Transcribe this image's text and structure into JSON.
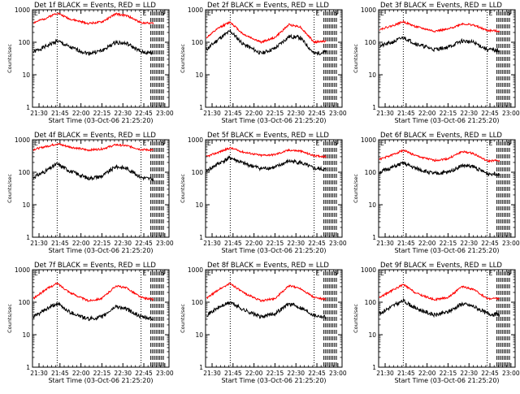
{
  "figure": {
    "ylabel": "Counts/sec",
    "xlabel": "Start Time (03-Oct-06 21:25:20)",
    "legend": "BLACK = Events, RED = LLD",
    "y_ticks": [
      "1",
      "10",
      "100",
      "1000"
    ],
    "x_ticks": [
      "21:30",
      "21:45",
      "22:00",
      "22:15",
      "22:30",
      "22:45",
      "23:00"
    ],
    "marker_e": "E",
    "marker_s": "S",
    "colors": {
      "events": "#000000",
      "lld": "#ff0000"
    }
  },
  "chart_data": [
    {
      "type": "line",
      "detector": "Det 1f",
      "title": "Det 1f BLACK = Events, RED = LLD",
      "xlabel": "Start Time (03-Oct-06 21:25:20)",
      "ylabel": "Counts/sec",
      "yscale": "log",
      "ylim": [
        1,
        1000
      ],
      "xlim": [
        "21:25:20",
        "23:03"
      ],
      "vlines_dotted": [
        "21:43",
        "22:43"
      ],
      "vlines_dashed_after": "22:50",
      "series": [
        {
          "name": "Events",
          "color": "#000000",
          "x": [
            "21:26",
            "21:35",
            "21:43",
            "21:52",
            "22:05",
            "22:15",
            "22:25",
            "22:33",
            "22:43",
            "22:52"
          ],
          "values": [
            50,
            75,
            110,
            70,
            45,
            55,
            100,
            90,
            50,
            45
          ]
        },
        {
          "name": "LLD",
          "color": "#ff0000",
          "x": [
            "21:26",
            "21:35",
            "21:43",
            "21:52",
            "22:05",
            "22:15",
            "22:25",
            "22:33",
            "22:43",
            "22:52"
          ],
          "values": [
            400,
            550,
            800,
            520,
            380,
            420,
            750,
            650,
            400,
            380
          ]
        }
      ]
    },
    {
      "type": "line",
      "detector": "Det 2f",
      "title": "Det 2f BLACK = Events, RED = LLD",
      "xlabel": "Start Time (03-Oct-06 21:25:20)",
      "ylabel": "Counts/sec",
      "yscale": "log",
      "ylim": [
        1,
        1000
      ],
      "xlim": [
        "21:25:20",
        "23:03"
      ],
      "vlines_dotted": [
        "21:43",
        "22:43"
      ],
      "vlines_dashed_after": "22:50",
      "series": [
        {
          "name": "Events",
          "color": "#000000",
          "x": [
            "21:26",
            "21:35",
            "21:43",
            "21:52",
            "22:05",
            "22:15",
            "22:25",
            "22:33",
            "22:43",
            "22:52"
          ],
          "values": [
            60,
            130,
            220,
            90,
            45,
            65,
            150,
            140,
            45,
            50
          ]
        },
        {
          "name": "LLD",
          "color": "#ff0000",
          "x": [
            "21:26",
            "21:35",
            "21:43",
            "21:52",
            "22:05",
            "22:15",
            "22:25",
            "22:33",
            "22:43",
            "22:52"
          ],
          "values": [
            140,
            280,
            420,
            180,
            100,
            140,
            350,
            300,
            100,
            110
          ]
        }
      ]
    },
    {
      "type": "line",
      "detector": "Det 3f",
      "title": "Det 3f BLACK = Events, RED = LLD",
      "xlabel": "Start Time (03-Oct-06 21:25:20)",
      "ylabel": "Counts/sec",
      "yscale": "log",
      "ylim": [
        1,
        1000
      ],
      "xlim": [
        "21:25:20",
        "23:03"
      ],
      "vlines_dotted": [
        "21:43",
        "22:43"
      ],
      "vlines_dashed_after": "22:50",
      "series": [
        {
          "name": "Events",
          "color": "#000000",
          "x": [
            "21:26",
            "21:35",
            "21:43",
            "21:52",
            "22:05",
            "22:15",
            "22:25",
            "22:33",
            "22:43",
            "22:52"
          ],
          "values": [
            75,
            100,
            140,
            90,
            60,
            70,
            110,
            100,
            60,
            55
          ]
        },
        {
          "name": "LLD",
          "color": "#ff0000",
          "x": [
            "21:26",
            "21:35",
            "21:43",
            "21:52",
            "22:05",
            "22:15",
            "22:25",
            "22:33",
            "22:43",
            "22:52"
          ],
          "values": [
            250,
            320,
            430,
            300,
            220,
            250,
            370,
            340,
            230,
            220
          ]
        }
      ]
    },
    {
      "type": "line",
      "detector": "Det 4f",
      "title": "Det 4f BLACK = Events, RED = LLD",
      "xlabel": "Start Time (03-Oct-06 21:25:20)",
      "ylabel": "Counts/sec",
      "yscale": "log",
      "ylim": [
        1,
        1000
      ],
      "xlim": [
        "21:25:20",
        "23:03"
      ],
      "vlines_dotted": [
        "21:43",
        "22:43"
      ],
      "vlines_dashed_after": "22:50",
      "series": [
        {
          "name": "Events",
          "color": "#000000",
          "x": [
            "21:26",
            "21:35",
            "21:43",
            "21:52",
            "22:05",
            "22:15",
            "22:25",
            "22:33",
            "22:43",
            "22:52"
          ],
          "values": [
            70,
            110,
            180,
            110,
            65,
            75,
            150,
            130,
            70,
            60
          ]
        },
        {
          "name": "LLD",
          "color": "#ff0000",
          "x": [
            "21:26",
            "21:35",
            "21:43",
            "21:52",
            "22:05",
            "22:15",
            "22:25",
            "22:33",
            "22:43",
            "22:52"
          ],
          "values": [
            500,
            620,
            750,
            600,
            480,
            520,
            700,
            650,
            500,
            480
          ]
        }
      ]
    },
    {
      "type": "line",
      "detector": "Det 5f",
      "title": "Det 5f BLACK = Events, RED = LLD",
      "xlabel": "Start Time (03-Oct-06 21:25:20)",
      "ylabel": "Counts/sec",
      "yscale": "log",
      "ylim": [
        1,
        1000
      ],
      "xlim": [
        "21:25:20",
        "23:03"
      ],
      "vlines_dotted": [
        "21:43",
        "22:43"
      ],
      "vlines_dashed_after": "22:50",
      "series": [
        {
          "name": "Events",
          "color": "#000000",
          "x": [
            "21:26",
            "21:35",
            "21:43",
            "21:52",
            "22:05",
            "22:15",
            "22:25",
            "22:33",
            "22:43",
            "22:52"
          ],
          "values": [
            110,
            190,
            280,
            190,
            130,
            140,
            220,
            200,
            130,
            120
          ]
        },
        {
          "name": "LLD",
          "color": "#ff0000",
          "x": [
            "21:26",
            "21:35",
            "21:43",
            "21:52",
            "22:05",
            "22:15",
            "22:25",
            "22:33",
            "22:43",
            "22:52"
          ],
          "values": [
            300,
            420,
            560,
            420,
            330,
            350,
            480,
            450,
            320,
            300
          ]
        }
      ]
    },
    {
      "type": "line",
      "detector": "Det 6f",
      "title": "Det 6f BLACK = Events, RED = LLD",
      "xlabel": "Start Time (03-Oct-06 21:25:20)",
      "ylabel": "Counts/sec",
      "yscale": "log",
      "ylim": [
        1,
        1000
      ],
      "xlim": [
        "21:25:20",
        "23:03"
      ],
      "vlines_dotted": [
        "21:43",
        "22:43"
      ],
      "vlines_dashed_after": "22:50",
      "series": [
        {
          "name": "Events",
          "color": "#000000",
          "x": [
            "21:26",
            "21:35",
            "21:43",
            "21:52",
            "22:05",
            "22:15",
            "22:25",
            "22:33",
            "22:43",
            "22:52"
          ],
          "values": [
            100,
            140,
            190,
            130,
            90,
            100,
            160,
            150,
            90,
            90
          ]
        },
        {
          "name": "LLD",
          "color": "#ff0000",
          "x": [
            "21:26",
            "21:35",
            "21:43",
            "21:52",
            "22:05",
            "22:15",
            "22:25",
            "22:33",
            "22:43",
            "22:52"
          ],
          "values": [
            250,
            340,
            480,
            320,
            230,
            260,
            430,
            380,
            220,
            230
          ]
        }
      ]
    },
    {
      "type": "line",
      "detector": "Det 7f",
      "title": "Det 7f BLACK = Events, RED = LLD",
      "xlabel": "Start Time (03-Oct-06 21:25:20)",
      "ylabel": "Counts/sec",
      "yscale": "log",
      "ylim": [
        1,
        1000
      ],
      "xlim": [
        "21:25:20",
        "23:03"
      ],
      "vlines_dotted": [
        "21:43",
        "22:43"
      ],
      "vlines_dashed_after": "22:50",
      "series": [
        {
          "name": "Events",
          "color": "#000000",
          "x": [
            "21:26",
            "21:35",
            "21:43",
            "21:52",
            "22:05",
            "22:15",
            "22:25",
            "22:33",
            "22:43",
            "22:52"
          ],
          "values": [
            35,
            60,
            90,
            50,
            30,
            35,
            75,
            60,
            35,
            30
          ]
        },
        {
          "name": "LLD",
          "color": "#ff0000",
          "x": [
            "21:26",
            "21:35",
            "21:43",
            "21:52",
            "22:05",
            "22:15",
            "22:25",
            "22:33",
            "22:43",
            "22:52"
          ],
          "values": [
            130,
            250,
            380,
            200,
            110,
            130,
            320,
            270,
            140,
            120
          ]
        }
      ]
    },
    {
      "type": "line",
      "detector": "Det 8f",
      "title": "Det 8f BLACK = Events, RED = LLD",
      "xlabel": "Start Time (03-Oct-06 21:25:20)",
      "ylabel": "Counts/sec",
      "yscale": "log",
      "ylim": [
        1,
        1000
      ],
      "xlim": [
        "21:25:20",
        "23:03"
      ],
      "vlines_dotted": [
        "21:43",
        "22:43"
      ],
      "vlines_dashed_after": "22:50",
      "series": [
        {
          "name": "Events",
          "color": "#000000",
          "x": [
            "21:26",
            "21:35",
            "21:43",
            "21:52",
            "22:05",
            "22:15",
            "22:25",
            "22:33",
            "22:43",
            "22:52"
          ],
          "values": [
            40,
            70,
            100,
            60,
            35,
            45,
            90,
            70,
            40,
            35
          ]
        },
        {
          "name": "LLD",
          "color": "#ff0000",
          "x": [
            "21:26",
            "21:35",
            "21:43",
            "21:52",
            "22:05",
            "22:15",
            "22:25",
            "22:33",
            "22:43",
            "22:52"
          ],
          "values": [
            130,
            250,
            380,
            200,
            110,
            130,
            320,
            270,
            140,
            120
          ]
        }
      ]
    },
    {
      "type": "line",
      "detector": "Det 9f",
      "title": "Det 9f BLACK = Events, RED = LLD",
      "xlabel": "Start Time (03-Oct-06 21:25:20)",
      "ylabel": "Counts/sec",
      "yscale": "log",
      "ylim": [
        1,
        1000
      ],
      "xlim": [
        "21:25:20",
        "23:03"
      ],
      "vlines_dotted": [
        "21:43",
        "22:43"
      ],
      "vlines_dashed_after": "22:50",
      "series": [
        {
          "name": "Events",
          "color": "#000000",
          "x": [
            "21:26",
            "21:35",
            "21:43",
            "21:52",
            "22:05",
            "22:15",
            "22:25",
            "22:33",
            "22:43",
            "22:52"
          ],
          "values": [
            45,
            75,
            110,
            65,
            40,
            50,
            90,
            75,
            45,
            40
          ]
        },
        {
          "name": "LLD",
          "color": "#ff0000",
          "x": [
            "21:26",
            "21:35",
            "21:43",
            "21:52",
            "22:05",
            "22:15",
            "22:25",
            "22:33",
            "22:43",
            "22:52"
          ],
          "values": [
            140,
            230,
            350,
            190,
            120,
            140,
            300,
            250,
            130,
            130
          ]
        }
      ]
    }
  ]
}
